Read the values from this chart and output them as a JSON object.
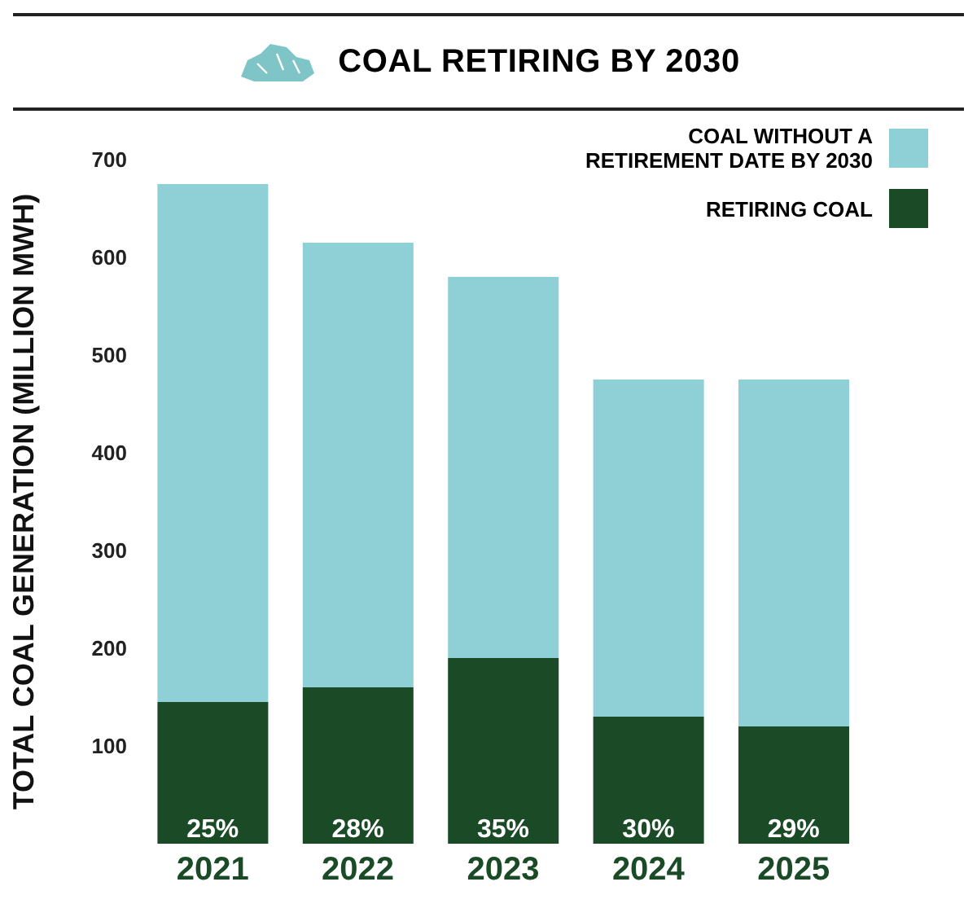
{
  "chart_data": {
    "type": "bar",
    "title": "COAL RETIRING BY 2030",
    "ylabel": "TOTAL COAL GENERATION (MILLION MWH)",
    "categories": [
      "2021",
      "2022",
      "2023",
      "2024",
      "2025"
    ],
    "stacked": true,
    "series": [
      {
        "name": "RETIRING COAL",
        "color": "#1b4a27",
        "values": [
          145,
          160,
          190,
          130,
          120
        ]
      },
      {
        "name": "COAL WITHOUT A RETIREMENT DATE BY 2030",
        "color": "#8ed0d6",
        "values": [
          530,
          455,
          390,
          345,
          355
        ]
      }
    ],
    "annotations": [
      {
        "text": "25%",
        "x": "2021",
        "y": 0
      },
      {
        "text": "28%",
        "x": "2022",
        "y": 0
      },
      {
        "text": "35%",
        "x": "2023",
        "y": 0
      },
      {
        "text": "30%",
        "x": "2024",
        "y": 0
      },
      {
        "text": "29%",
        "x": "2025",
        "y": 0
      }
    ],
    "ylim": [
      0,
      700
    ],
    "yticks": [
      100,
      200,
      300,
      400,
      500,
      600,
      700
    ],
    "grid": false,
    "legend": "top right"
  }
}
